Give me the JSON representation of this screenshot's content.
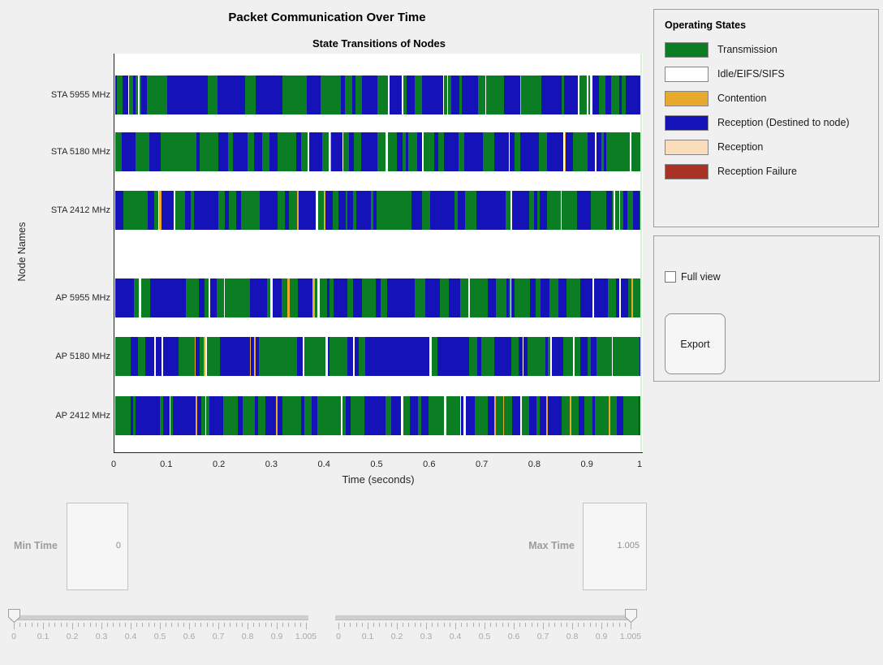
{
  "figure": {
    "background": "#F0F0F0",
    "plot_background": "#FFFFFF",
    "right_edge_line_color": "#D9F0D7"
  },
  "chart_data": {
    "type": "state-timeline",
    "title": "Packet Communication Over Time",
    "subtitle": "State Transitions of Nodes",
    "xlabel": "Time (seconds)",
    "ylabel": "Node Names",
    "xlim": [
      0,
      1.005
    ],
    "x_ticks": [
      {
        "value": 0.0,
        "label": "0"
      },
      {
        "value": 0.1,
        "label": "0.1"
      },
      {
        "value": 0.2,
        "label": "0.2"
      },
      {
        "value": 0.3,
        "label": "0.3"
      },
      {
        "value": 0.4,
        "label": "0.4"
      },
      {
        "value": 0.5,
        "label": "0.5"
      },
      {
        "value": 0.6,
        "label": "0.6"
      },
      {
        "value": 0.7,
        "label": "0.7"
      },
      {
        "value": 0.8,
        "label": "0.8"
      },
      {
        "value": 0.9,
        "label": "0.9"
      },
      {
        "value": 1.0,
        "label": "1"
      }
    ],
    "nodes": [
      "STA 5955 MHz",
      "STA 5180 MHz",
      "STA 2412 MHz",
      "AP 5955 MHz",
      "AP 5180 MHz",
      "AP 2412 MHz"
    ],
    "states": [
      {
        "name": "transmission",
        "label": "Transmission",
        "color": "#0B7D23"
      },
      {
        "name": "idle",
        "label": "Idle/EIFS/SIFS",
        "color": "#FFFFFF"
      },
      {
        "name": "contention",
        "label": "Contention",
        "color": "#E9A92D"
      },
      {
        "name": "reception_destined",
        "label": "Reception (Destined to node)",
        "color": "#1512B8"
      },
      {
        "name": "reception",
        "label": "Reception",
        "color": "#FBDCBB"
      },
      {
        "name": "reception_failure",
        "label": "Reception Failure",
        "color": "#A93226"
      }
    ],
    "rows": [
      {
        "node": "STA 5955 MHz",
        "seed": 101,
        "weights": {
          "transmission": 0.44,
          "reception_destined": 0.44,
          "contention": 0.04,
          "idle": 0.08
        }
      },
      {
        "node": "STA 5180 MHz",
        "seed": 202,
        "weights": {
          "transmission": 0.44,
          "reception_destined": 0.44,
          "contention": 0.04,
          "idle": 0.08
        }
      },
      {
        "node": "STA 2412 MHz",
        "seed": 303,
        "weights": {
          "transmission": 0.44,
          "reception_destined": 0.44,
          "contention": 0.04,
          "idle": 0.08
        }
      },
      {
        "node": "AP 5955 MHz",
        "seed": 404,
        "weights": {
          "transmission": 0.42,
          "reception_destined": 0.46,
          "contention": 0.04,
          "idle": 0.08
        }
      },
      {
        "node": "AP 5180 MHz",
        "seed": 505,
        "weights": {
          "transmission": 0.45,
          "reception_destined": 0.43,
          "contention": 0.04,
          "idle": 0.08
        }
      },
      {
        "node": "AP 2412 MHz",
        "seed": 606,
        "weights": {
          "transmission": 0.46,
          "reception_destined": 0.42,
          "contention": 0.04,
          "idle": 0.08
        }
      }
    ],
    "description": "Each node row is a dense sequence of alternating Transmission (green) and Reception-Destined (blue) segments spanning 0 to 1 seconds, with occasional thin idle/contention slivers."
  },
  "legend": {
    "title": "Operating States",
    "items": [
      {
        "label": "Transmission",
        "color": "#0B7D23",
        "border": "#858585"
      },
      {
        "label": "Idle/EIFS/SIFS",
        "color": "#FFFFFF",
        "border": "#858585"
      },
      {
        "label": "Contention",
        "color": "#E9A92D",
        "border": "#858585"
      },
      {
        "label": "Reception (Destined to node)",
        "color": "#1512B8",
        "border": "#858585"
      },
      {
        "label": "Reception",
        "color": "#FBDCBB",
        "border": "#858585"
      },
      {
        "label": "Reception Failure",
        "color": "#A93226",
        "border": "#858585"
      }
    ]
  },
  "controls": {
    "full_view": {
      "label": "Full view",
      "checked": false
    },
    "export": {
      "label": "Export"
    },
    "min_time": {
      "label": "Min Time",
      "value": "0"
    },
    "max_time": {
      "label": "Max Time",
      "value": "1.005"
    },
    "sliders": [
      {
        "name": "min-time-slider",
        "thumb": "start",
        "value": "0",
        "tick_labels": [
          "0",
          "0.1",
          "0.2",
          "0.3",
          "0.4",
          "0.5",
          "0.6",
          "0.7",
          "0.8",
          "0.9",
          "1.005"
        ]
      },
      {
        "name": "max-time-slider",
        "thumb": "end",
        "value": "1.005",
        "tick_labels": [
          "0",
          "0.1",
          "0.2",
          "0.3",
          "0.4",
          "0.5",
          "0.6",
          "0.7",
          "0.8",
          "0.9",
          "1.005"
        ]
      }
    ]
  }
}
